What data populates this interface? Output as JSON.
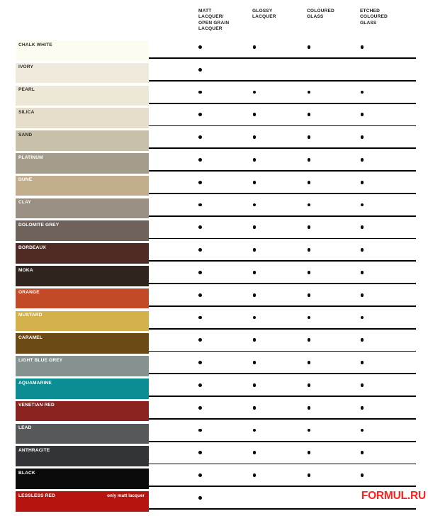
{
  "header": {
    "columns": [
      {
        "label": "MATT\nLACQUER/\nOPEN GRAIN\nLACQUER"
      },
      {
        "label": "GLOSSY\nLACQUER"
      },
      {
        "label": "COLOURED\nGLASS"
      },
      {
        "label": "ETCHED\nCOLOURED\nGLASS"
      }
    ]
  },
  "table": {
    "rows": [
      {
        "name": "CHALK WHITE",
        "color": "#FDFCF0",
        "text_color": "#2e2e29",
        "availability": [
          true,
          true,
          true,
          true
        ]
      },
      {
        "name": "IVORY",
        "color": "#F0EADC",
        "text_color": "#2e2e29",
        "availability": [
          true,
          false,
          false,
          false
        ]
      },
      {
        "name": "PEARL",
        "color": "#EDE7D8",
        "text_color": "#2e2e29",
        "availability": [
          true,
          true,
          true,
          true
        ]
      },
      {
        "name": "SILICA",
        "color": "#E6DECB",
        "text_color": "#2e2e29",
        "availability": [
          true,
          true,
          true,
          true
        ]
      },
      {
        "name": "SAND",
        "color": "#C8C0A8",
        "text_color": "#2e2e29",
        "availability": [
          true,
          true,
          true,
          true
        ]
      },
      {
        "name": "PLATINUM",
        "color": "#A49D8B",
        "text_color": "#FFFFFF",
        "availability": [
          true,
          true,
          true,
          true
        ]
      },
      {
        "name": "DUNE",
        "color": "#C2AE8D",
        "text_color": "#FFFFFF",
        "availability": [
          true,
          true,
          true,
          true
        ]
      },
      {
        "name": "CLAY",
        "color": "#998F82",
        "text_color": "#FFFFFF",
        "availability": [
          true,
          true,
          true,
          true
        ]
      },
      {
        "name": "DOLOMITE GREY",
        "color": "#6E625B",
        "text_color": "#FFFFFF",
        "availability": [
          true,
          true,
          true,
          true
        ]
      },
      {
        "name": "BORDEAUX",
        "color": "#502A24",
        "text_color": "#FFFFFF",
        "availability": [
          true,
          true,
          true,
          true
        ]
      },
      {
        "name": "MOKA",
        "color": "#2F241E",
        "text_color": "#FFFFFF",
        "availability": [
          true,
          true,
          true,
          true
        ]
      },
      {
        "name": "ORANGE",
        "color": "#C34A27",
        "text_color": "#FFFFFF",
        "availability": [
          true,
          true,
          true,
          true
        ]
      },
      {
        "name": "MUSTARD",
        "color": "#D5B14C",
        "text_color": "#FFFFFF",
        "availability": [
          true,
          true,
          true,
          true
        ]
      },
      {
        "name": "CARAMEL",
        "color": "#6C4A16",
        "text_color": "#FFFFFF",
        "availability": [
          true,
          true,
          true,
          true
        ]
      },
      {
        "name": "LIGHT BLUE GREY",
        "color": "#85928F",
        "text_color": "#FFFFFF",
        "availability": [
          true,
          true,
          true,
          true
        ]
      },
      {
        "name": "AQUAMARINE",
        "color": "#0C8C93",
        "text_color": "#FFFFFF",
        "availability": [
          true,
          true,
          true,
          true
        ]
      },
      {
        "name": "VENETIAN RED",
        "color": "#8B2421",
        "text_color": "#FFFFFF",
        "availability": [
          true,
          true,
          true,
          true
        ]
      },
      {
        "name": "LEAD",
        "color": "#565859",
        "text_color": "#FFFFFF",
        "availability": [
          true,
          true,
          true,
          true
        ]
      },
      {
        "name": "ANTHRACITE",
        "color": "#323437",
        "text_color": "#FFFFFF",
        "availability": [
          true,
          true,
          true,
          true
        ]
      },
      {
        "name": "BLACK",
        "color": "#0A0A0A",
        "text_color": "#FFFFFF",
        "availability": [
          true,
          true,
          true,
          true
        ]
      },
      {
        "name": "LESSLESS RED",
        "note": "only matt lacquer",
        "color": "#B5140F",
        "text_color": "#FFFFFF",
        "availability": [
          true,
          false,
          false,
          false
        ]
      }
    ]
  },
  "watermark": {
    "text": "FORMUL.RU",
    "color": "#FA2420"
  }
}
